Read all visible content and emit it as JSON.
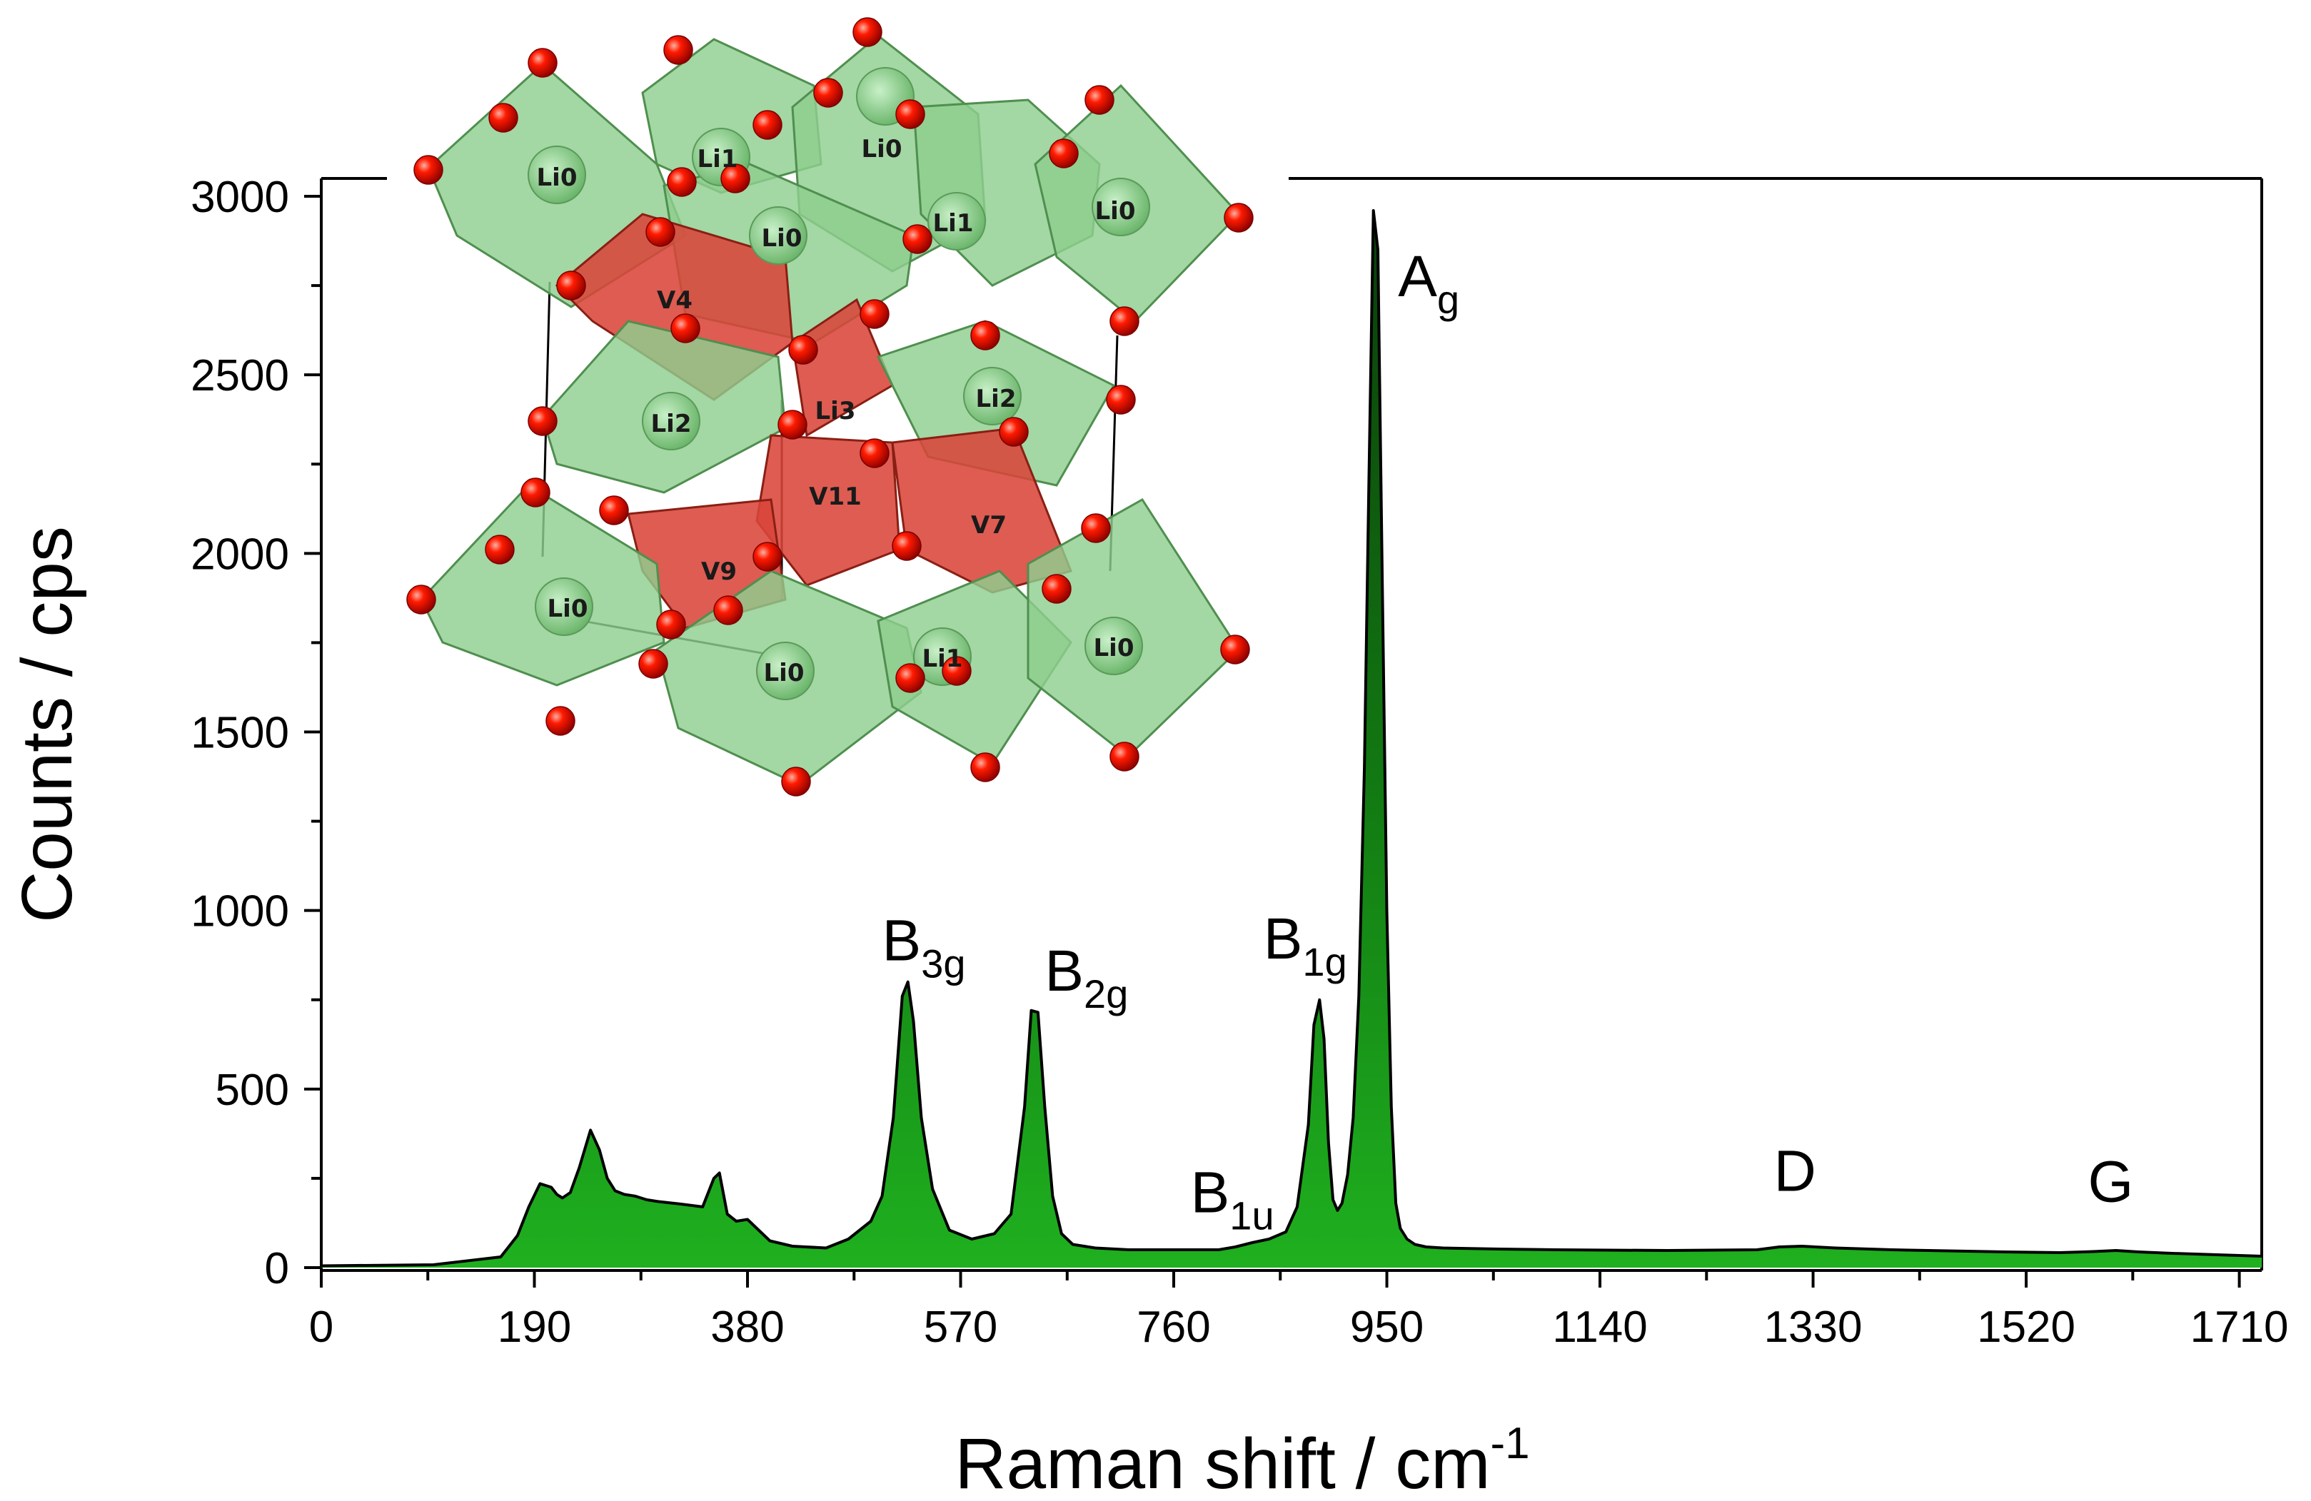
{
  "chart_data": {
    "type": "area",
    "xlabel": "Raman shift / cm",
    "xlabel_superscript": "-1",
    "ylabel": "Counts / cps",
    "xlim": [
      0,
      1730
    ],
    "ylim": [
      0,
      3000
    ],
    "x_ticks": [
      "0",
      "190",
      "380",
      "570",
      "760",
      "950",
      "1140",
      "1330",
      "1520",
      "1710"
    ],
    "x_tick_values": [
      0,
      190,
      380,
      570,
      760,
      950,
      1140,
      1330,
      1520,
      1710
    ],
    "y_ticks": [
      "0",
      "500",
      "1000",
      "1500",
      "2000",
      "2500",
      "3000"
    ],
    "y_tick_values": [
      0,
      500,
      1000,
      1500,
      2000,
      2500,
      3000
    ],
    "series": [
      {
        "x": [
          0,
          100,
          160,
          175,
          185,
          195,
          205,
          210,
          215,
          222,
          230,
          240,
          248,
          255,
          262,
          270,
          280,
          290,
          300,
          320,
          340,
          350,
          355,
          362,
          370,
          380,
          390,
          400,
          420,
          450,
          470,
          490,
          500,
          510,
          518,
          523,
          528,
          535,
          545,
          560,
          580,
          600,
          615,
          627,
          633,
          639,
          645,
          652,
          660,
          670,
          690,
          720,
          760,
          800,
          815,
          830,
          845,
          860,
          870,
          880,
          885,
          890,
          894,
          898,
          902,
          906,
          910,
          915,
          920,
          925,
          930,
          934,
          938,
          942,
          946,
          950,
          954,
          958,
          962,
          968,
          975,
          985,
          1000,
          1050,
          1100,
          1200,
          1280,
          1300,
          1320,
          1350,
          1400,
          1500,
          1550,
          1580,
          1600,
          1620,
          1650,
          1700,
          1730
        ],
        "y": [
          5,
          8,
          30,
          90,
          170,
          235,
          225,
          205,
          195,
          210,
          280,
          385,
          330,
          250,
          215,
          205,
          200,
          190,
          185,
          178,
          170,
          250,
          265,
          150,
          130,
          135,
          105,
          75,
          60,
          55,
          80,
          130,
          200,
          420,
          760,
          800,
          690,
          420,
          220,
          105,
          80,
          95,
          150,
          450,
          720,
          715,
          450,
          200,
          95,
          65,
          55,
          50,
          50,
          50,
          58,
          70,
          80,
          100,
          170,
          400,
          680,
          750,
          640,
          350,
          190,
          160,
          180,
          260,
          420,
          760,
          1400,
          2200,
          2960,
          2850,
          1900,
          1000,
          450,
          180,
          110,
          80,
          65,
          58,
          55,
          52,
          50,
          48,
          50,
          58,
          60,
          55,
          50,
          44,
          42,
          45,
          48,
          44,
          40,
          35,
          32
        ]
      }
    ],
    "annotations": [
      {
        "label": "A",
        "sub": "g",
        "x": 960,
        "y": 2720
      },
      {
        "label": "B",
        "sub": "3g",
        "x": 500,
        "y": 860
      },
      {
        "label": "B",
        "sub": "2g",
        "x": 645,
        "y": 775
      },
      {
        "label": "B",
        "sub": "1g",
        "x": 840,
        "y": 865
      },
      {
        "label": "B",
        "sub": "1u",
        "x": 775,
        "y": 155
      },
      {
        "label": "D",
        "x": 1295,
        "y": 215
      },
      {
        "label": "G",
        "x": 1575,
        "y": 185
      }
    ],
    "inset_atom_labels": [
      "Li0",
      "Li1",
      "Li0",
      "Li0",
      "Li1",
      "Li0",
      "V4",
      "Li2",
      "Li3",
      "Li2",
      "V11",
      "V7",
      "V9",
      "Li0",
      "Li0",
      "Li1",
      "Li0"
    ],
    "colors": {
      "fill_dark": "#0b3d0b",
      "fill_light": "#1fa81f",
      "outline": "#000000",
      "octahedron_green": "#8fce8f",
      "tetrahedron_red": "#d9463a",
      "oxygen_red": "#e60000"
    }
  }
}
